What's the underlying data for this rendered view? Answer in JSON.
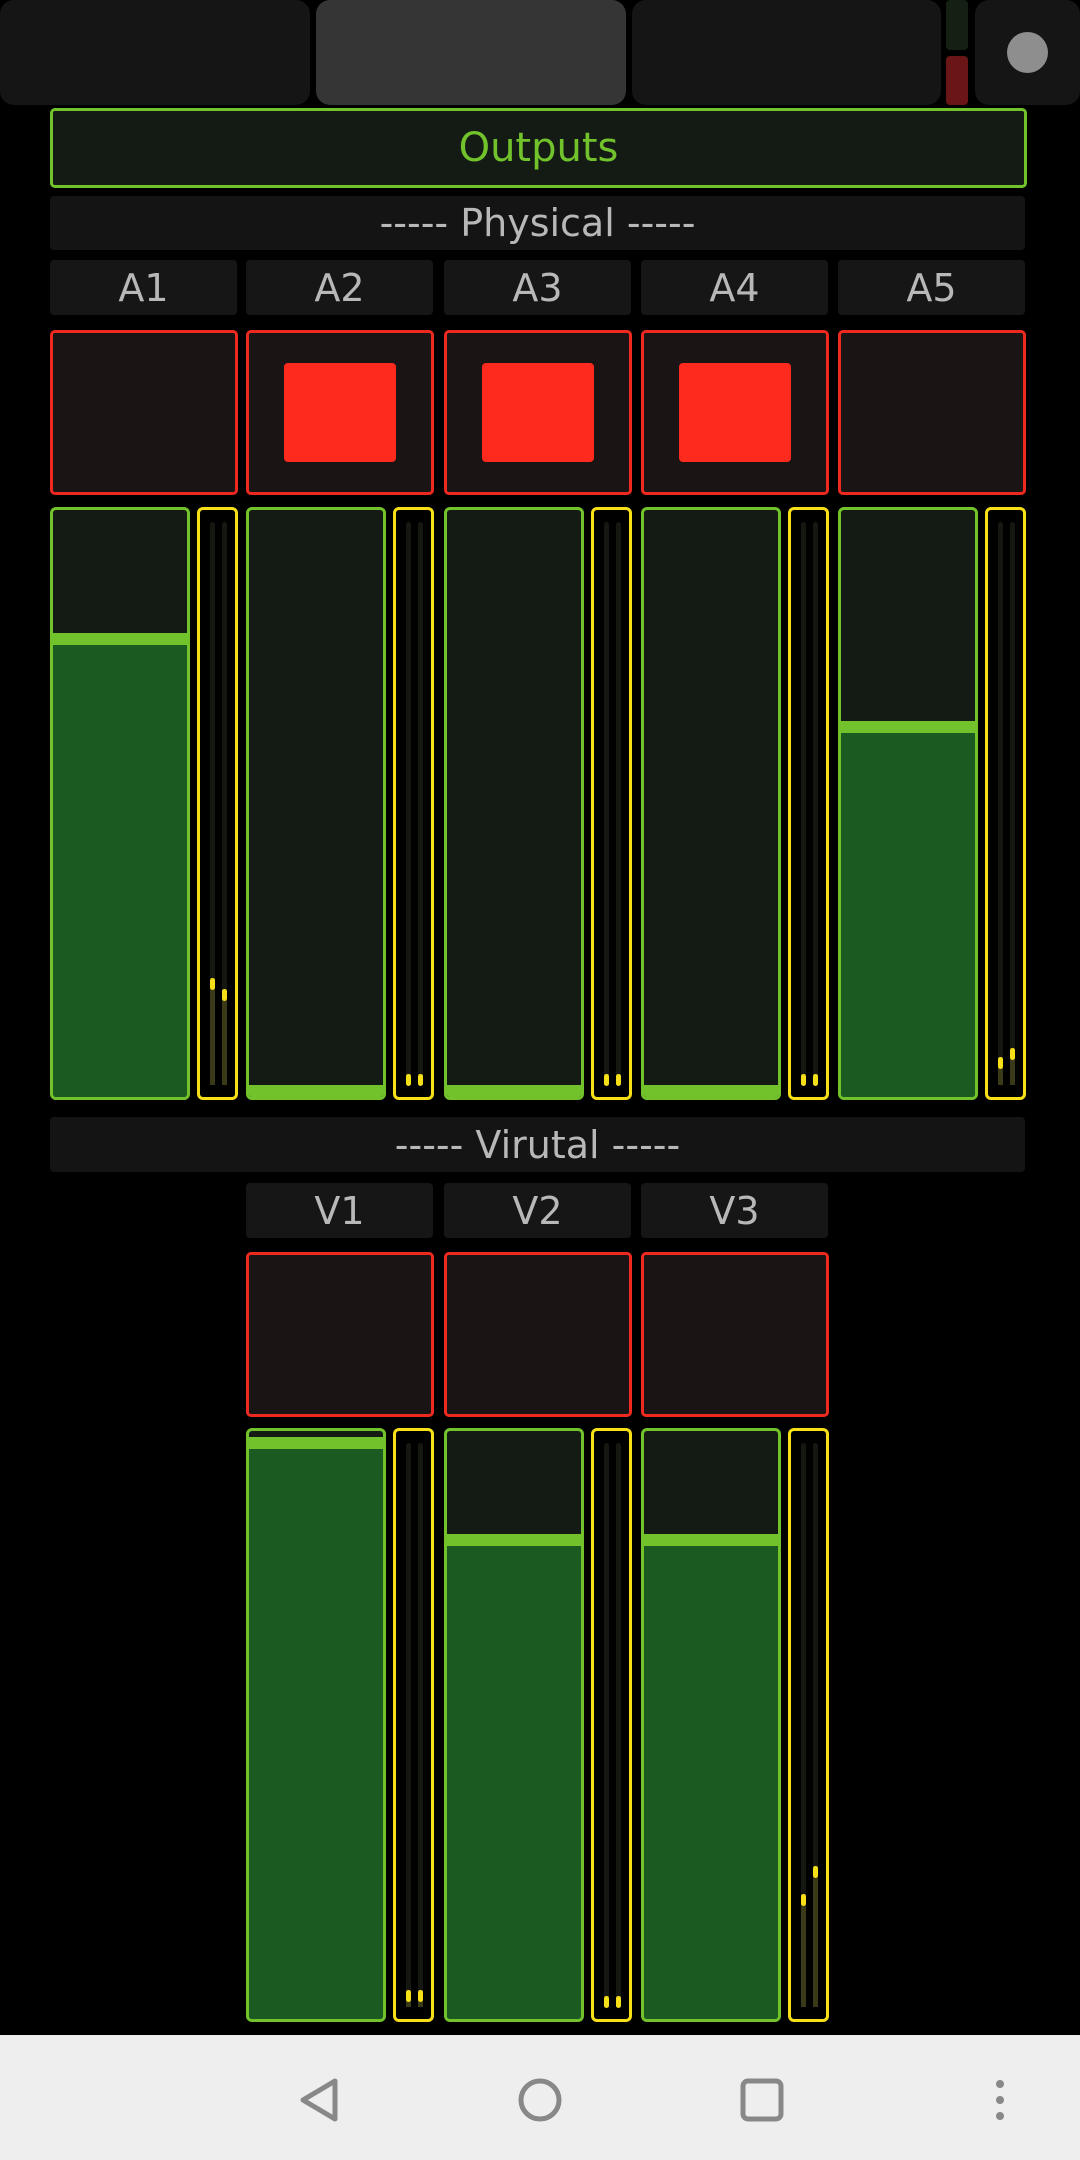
{
  "top_bar": {
    "buttons": [
      {
        "active": false
      },
      {
        "active": true
      },
      {
        "active": false
      }
    ],
    "status_indicator": {
      "top_color": "#142014",
      "bottom_color": "#6a1616"
    },
    "record_button_icon": "circle-icon"
  },
  "outputs_label": "Outputs",
  "physical": {
    "header": "----- Physical -----",
    "channels": [
      {
        "label": "A1",
        "muted": false,
        "fader": 0.79,
        "meter": [
          0.19,
          0.17
        ]
      },
      {
        "label": "A2",
        "muted": true,
        "fader": 0.0,
        "meter": [
          0.02,
          0.02
        ]
      },
      {
        "label": "A3",
        "muted": true,
        "fader": 0.0,
        "meter": [
          0.02,
          0.02
        ]
      },
      {
        "label": "A4",
        "muted": true,
        "fader": 0.0,
        "meter": [
          0.02,
          0.02
        ]
      },
      {
        "label": "A5",
        "muted": false,
        "fader": 0.64,
        "meter": [
          0.05,
          0.065
        ]
      }
    ]
  },
  "virtual": {
    "header": "----- Virutal -----",
    "channels": [
      {
        "label": "V1",
        "muted": false,
        "fader": 0.99,
        "meter": [
          0.03,
          0.03
        ]
      },
      {
        "label": "V2",
        "muted": false,
        "fader": 0.825,
        "meter": [
          0.02,
          0.02
        ]
      },
      {
        "label": "V3",
        "muted": false,
        "fader": 0.825,
        "meter": [
          0.2,
          0.25
        ]
      }
    ]
  },
  "nav_bar": {
    "icons": [
      "back-icon",
      "home-icon",
      "recents-icon",
      "more-icon"
    ]
  },
  "colors": {
    "fader": "#72c22c",
    "meter": "#f7e017",
    "mute": "#ee2a20"
  }
}
